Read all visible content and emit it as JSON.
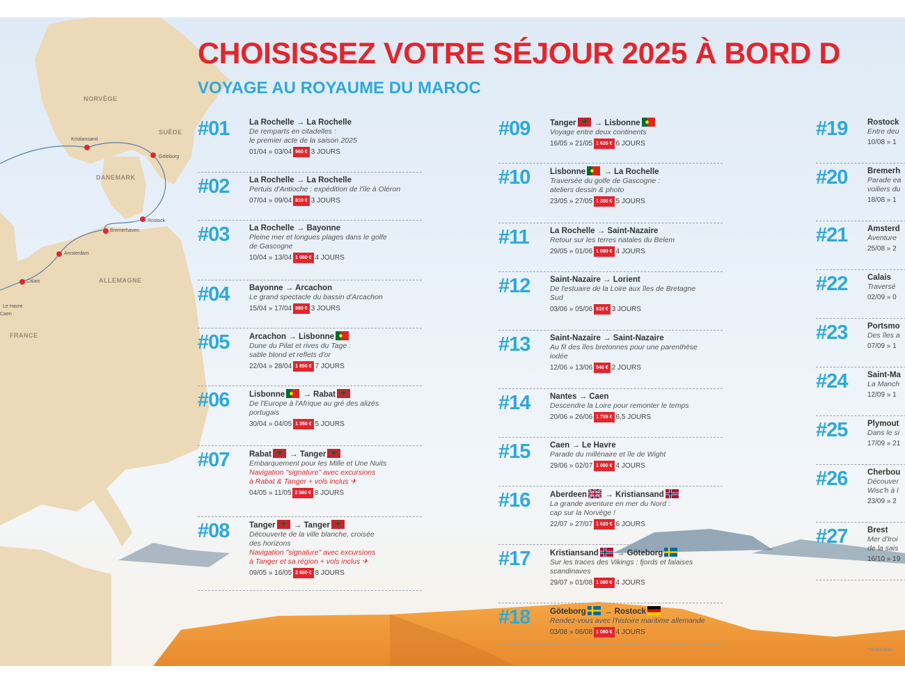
{
  "header": {
    "title": "CHOISISSEZ VOTRE SÉJOUR 2025 À BORD D",
    "subtitle": "VOYAGE AU ROYAUME DU MAROC"
  },
  "map": {
    "labels": {
      "norway": "NORVÈGE",
      "sweden": "SUÈDE",
      "denmark": "DANEMARK",
      "germany": "ALLEMAGNE",
      "france": "FRANCE"
    },
    "cities": {
      "kristiansand": "Kristiansand",
      "goteborg": "Göteborg",
      "rostock": "Rostock",
      "bremerhaven": "Bremerhaven",
      "amsterdam": "Amsterdam",
      "calais": "Calais",
      "le_havre": "Le Havre",
      "caen": "Caen"
    }
  },
  "colors": {
    "title_red": "#e1262d",
    "accent_blue": "#2ea9d8",
    "price_red": "#e1262d"
  },
  "columns": [
    [
      {
        "num": "#01",
        "from": "La Rochelle",
        "to": "La Rochelle",
        "desc": [
          "De remparts en citadelles :",
          "le premier acte de la saison 2025"
        ],
        "dates": "01/04 » 03/04",
        "price": "960 €",
        "days": "3 JOURS"
      },
      {
        "num": "#02",
        "from": "La Rochelle",
        "to": "La Rochelle",
        "desc": [
          "Pertuis d'Antioche : expédition de l'île à Oléron"
        ],
        "dates": "07/04 » 09/04",
        "price": "810 €",
        "days": "3 JOURS"
      },
      {
        "num": "#03",
        "from": "La Rochelle",
        "to": "Bayonne",
        "desc": [
          "Pleine mer et longues plages dans le golfe",
          "de Gascogne"
        ],
        "dates": "10/04 » 13/04",
        "price": "1 080 €",
        "days": "4 JOURS"
      },
      {
        "num": "#04",
        "from": "Bayonne",
        "to": "Arcachon",
        "desc": [
          "Le grand spectacle du bassin d'Arcachon"
        ],
        "dates": "15/04 » 17/04",
        "price": "880 €",
        "days": "3 JOURS"
      },
      {
        "num": "#05",
        "from": "Arcachon",
        "to": "Lisbonne",
        "to_flag": "pt",
        "desc": [
          "Dune du Pilat et rives du Tage :",
          "sable blond et reflets d'or"
        ],
        "dates": "22/04 » 28/04",
        "price": "1 890 €",
        "days": "7 JOURS"
      },
      {
        "num": "#06",
        "from": "Lisbonne",
        "from_flag": "pt",
        "to": "Rabat",
        "to_flag": "ma",
        "desc": [
          "De l'Europe à l'Afrique au gré des alizés",
          "portugais"
        ],
        "dates": "30/04 » 04/05",
        "price": "1 350 €",
        "days": "5 JOURS"
      },
      {
        "num": "#07",
        "from": "Rabat",
        "from_flag": "ma",
        "to": "Tanger",
        "to_flag": "ma",
        "desc": [
          "Embarquement pour les Mille et Une Nuits"
        ],
        "red": [
          "Navigation \"signature\" avec excursions",
          "à Rabat & Tanger + vols inclus ✈"
        ],
        "dates": "04/05 » 11/05",
        "price": "2 880 €",
        "days": "8 JOURS"
      },
      {
        "num": "#08",
        "from": "Tanger",
        "from_flag": "ma",
        "to": "Tanger",
        "to_flag": "ma",
        "desc": [
          "Découverte de la ville blanche, croisée",
          "des horizons"
        ],
        "red": [
          "Navigation \"signature\" avec excursions",
          "à Tanger et sa région + vols inclus ✈"
        ],
        "dates": "09/05 » 16/05",
        "price": "2 880 €",
        "days": "8 JOURS"
      }
    ],
    [
      {
        "num": "#09",
        "from": "Tanger",
        "from_flag": "ma",
        "to": "Lisbonne",
        "to_flag": "pt",
        "desc": [
          "Voyage entre deux continents"
        ],
        "dates": "16/05 » 21/05",
        "price": "1 620 €",
        "days": "6 JOURS"
      },
      {
        "num": "#10",
        "from": "Lisbonne",
        "from_flag": "pt",
        "to": "La Rochelle",
        "desc": [
          "Traversée du golfe de Gascogne :",
          "ateliers dessin & photo"
        ],
        "dates": "23/05 » 27/05",
        "price": "1 350 €",
        "days": "5 JOURS"
      },
      {
        "num": "#11",
        "from": "La Rochelle",
        "to": "Saint-Nazaire",
        "desc": [
          "Retour sur les terres natales du Belem"
        ],
        "dates": "29/05 » 01/06",
        "price": "1 080 €",
        "days": "4 JOURS"
      },
      {
        "num": "#12",
        "from": "Saint-Nazaire",
        "to": "Lorient",
        "desc": [
          "De l'estuaire de la Loire aux îles de Bretagne",
          "Sud"
        ],
        "dates": "03/06 » 05/06",
        "price": "810 €",
        "days": "3 JOURS"
      },
      {
        "num": "#13",
        "from": "Saint-Nazaire",
        "to": "Saint-Nazaire",
        "desc": [
          "Au fil des îles bretonnes pour une parenthèse",
          "iodée"
        ],
        "dates": "12/06 » 13/06",
        "price": "540 €",
        "days": "2 JOURS"
      },
      {
        "num": "#14",
        "from": "Nantes",
        "to": "Caen",
        "desc": [
          "Descendre la Loire pour remonter le temps"
        ],
        "dates": "20/06 » 26/06",
        "price": "1 755 €",
        "days": "6,5 JOURS"
      },
      {
        "num": "#15",
        "from": "Caen",
        "to": "Le Havre",
        "desc": [
          "Parade du millénaire et île de Wight"
        ],
        "dates": "29/06 » 02/07",
        "price": "1 080 €",
        "days": "4 JOURS"
      },
      {
        "num": "#16",
        "from": "Aberdeen",
        "from_flag": "gb",
        "to": "Kristiansand",
        "to_flag": "no",
        "desc": [
          "La grande aventure en mer du Nord :",
          "cap sur la Norvège !"
        ],
        "dates": "22/07 » 27/07",
        "price": "1 620 €",
        "days": "6 JOURS"
      },
      {
        "num": "#17",
        "from": "Kristiansand",
        "from_flag": "no",
        "to": "Göteborg",
        "to_flag": "se",
        "desc": [
          "Sur les traces des Vikings : fjords et falaises",
          "scandinaves"
        ],
        "dates": "29/07 » 01/08",
        "price": "1 080 €",
        "days": "4 JOURS"
      },
      {
        "num": "#18",
        "from": "Göteborg",
        "from_flag": "se",
        "to": "Rostock",
        "to_flag": "de",
        "desc": [
          "Rendez-vous avec l'histoire maritime allemande"
        ],
        "dates": "03/08 » 06/08",
        "price": "1 080 €",
        "days": "4 JOURS"
      }
    ],
    [
      {
        "num": "#19",
        "from": "Rostock",
        "desc": [
          "Entre deu"
        ],
        "dates": "10/08 » 1"
      },
      {
        "num": "#20",
        "from": "Bremerh",
        "desc": [
          "Parade ea",
          "voiliers du"
        ],
        "dates": "18/08 » 1"
      },
      {
        "num": "#21",
        "from": "Amsterd",
        "desc": [
          "Aventure"
        ],
        "dates": "25/08 » 2"
      },
      {
        "num": "#22",
        "from": "Calais",
        "desc": [
          "Traversé"
        ],
        "dates": "02/09 » 0"
      },
      {
        "num": "#23",
        "from": "Portsmo",
        "desc": [
          "Des îles a"
        ],
        "dates": "07/09 » 1"
      },
      {
        "num": "#24",
        "from": "Saint-Ma",
        "desc": [
          "La Manch"
        ],
        "dates": "12/09 » 1"
      },
      {
        "num": "#25",
        "from": "Plymout",
        "desc": [
          "Dans le si"
        ],
        "dates": "17/09 » 21"
      },
      {
        "num": "#26",
        "from": "Cherbou",
        "desc": [
          "Découver",
          "Wisc'h à l"
        ],
        "dates": "23/09 » 2"
      },
      {
        "num": "#27",
        "from": "Brest",
        "desc": [
          "Mer d'Iroi",
          "de la sais"
        ],
        "dates": "16/10 » 19"
      }
    ]
  ],
  "footnote": "*réduction"
}
